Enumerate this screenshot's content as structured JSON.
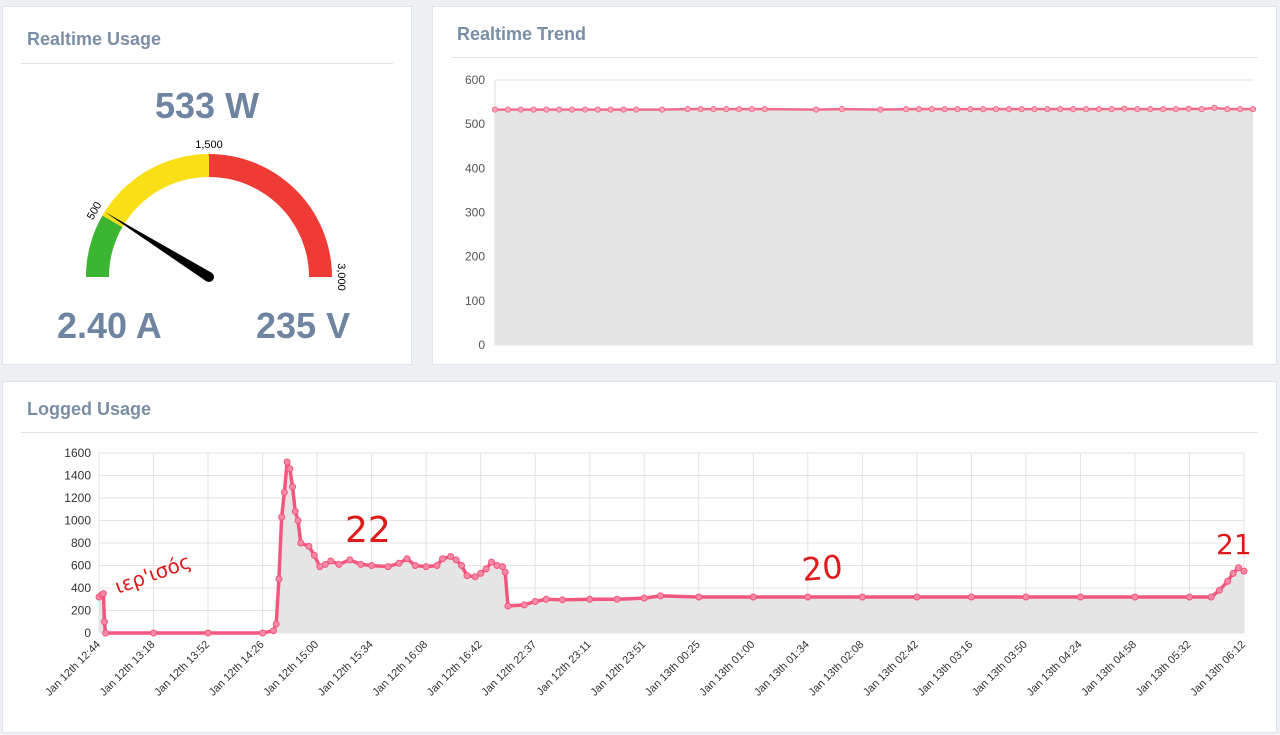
{
  "usage": {
    "title": "Realtime Usage",
    "power": "533 W",
    "current": "2.40 A",
    "voltage": "235 V",
    "gauge": {
      "min": 0,
      "max": 3000,
      "value": 533,
      "bands": [
        {
          "from": 0,
          "to": 500,
          "color": "#3cb532"
        },
        {
          "from": 500,
          "to": 1500,
          "color": "#f9e016"
        },
        {
          "from": 1500,
          "to": 3000,
          "color": "#ef3b36"
        }
      ],
      "tick_labels": [
        "500",
        "1,500",
        "3,000"
      ],
      "needle_color": "#000000"
    }
  },
  "trend": {
    "title": "Realtime Trend",
    "chart_data": {
      "type": "area",
      "yticks": [
        "600",
        "500",
        "400",
        "300",
        "200",
        "100",
        "0"
      ],
      "ylim": [
        0,
        600
      ],
      "series": [
        {
          "values": [
            533,
            533,
            533,
            533,
            533,
            533,
            533,
            533,
            533,
            533,
            533,
            533,
            533,
            534,
            534,
            534,
            534,
            534,
            534,
            534,
            533,
            534,
            533,
            534,
            534,
            534,
            534,
            534,
            534,
            534,
            534,
            534,
            534,
            534,
            534,
            534,
            534,
            534,
            534,
            534,
            535,
            534,
            534,
            534,
            534,
            535,
            534,
            537,
            534,
            534,
            534
          ]
        }
      ],
      "x_positions": [
        0,
        1,
        2,
        3,
        4,
        5,
        6,
        7,
        8,
        9,
        10,
        11,
        13,
        15,
        16,
        17,
        18,
        19,
        20,
        21,
        25,
        27,
        30,
        32,
        33,
        34,
        35,
        36,
        37,
        38,
        39,
        40,
        41,
        42,
        43,
        44,
        45,
        46,
        47,
        48,
        49,
        50,
        51,
        52,
        53,
        54,
        55,
        56,
        57,
        58,
        59
      ],
      "x_count": 59,
      "line_color": "#f06c8d",
      "fill_color": "#e5e5e5",
      "grid": true
    }
  },
  "logged": {
    "title": "Logged Usage",
    "chart_data": {
      "type": "area",
      "yticks": [
        "1600",
        "1400",
        "1200",
        "1000",
        "800",
        "600",
        "400",
        "200",
        "0"
      ],
      "ylim": [
        0,
        1600
      ],
      "xticks": [
        "Jan 12th 12:44",
        "Jan 12th 13:18",
        "Jan 12th 13:52",
        "Jan 12th 14:26",
        "Jan 12th 15:00",
        "Jan 12th 15:34",
        "Jan 12th 16:08",
        "Jan 12th 16:42",
        "Jan 12th 22:37",
        "Jan 12th 23:11",
        "Jan 12th 23:51",
        "Jan 13th 00:25",
        "Jan 13th 01:00",
        "Jan 13th 01:34",
        "Jan 13th 02:08",
        "Jan 13th 02:42",
        "Jan 13th 03:16",
        "Jan 13th 03:50",
        "Jan 13th 04:24",
        "Jan 13th 04:58",
        "Jan 13th 05:32",
        "Jan 13th 06:12"
      ],
      "series": [
        {
          "points": [
            [
              0,
              320
            ],
            [
              0.05,
              340
            ],
            [
              0.08,
              350
            ],
            [
              0.1,
              100
            ],
            [
              0.12,
              0
            ],
            [
              1,
              0
            ],
            [
              2,
              0
            ],
            [
              3,
              0
            ],
            [
              3.2,
              20
            ],
            [
              3.25,
              80
            ],
            [
              3.3,
              480
            ],
            [
              3.35,
              1030
            ],
            [
              3.4,
              1250
            ],
            [
              3.45,
              1520
            ],
            [
              3.5,
              1460
            ],
            [
              3.55,
              1300
            ],
            [
              3.6,
              1080
            ],
            [
              3.65,
              1000
            ],
            [
              3.7,
              800
            ],
            [
              3.85,
              770
            ],
            [
              3.95,
              690
            ],
            [
              4.05,
              590
            ],
            [
              4.15,
              610
            ],
            [
              4.25,
              640
            ],
            [
              4.4,
              610
            ],
            [
              4.6,
              650
            ],
            [
              4.8,
              610
            ],
            [
              5.0,
              600
            ],
            [
              5.3,
              590
            ],
            [
              5.5,
              620
            ],
            [
              5.65,
              660
            ],
            [
              5.8,
              600
            ],
            [
              6.0,
              590
            ],
            [
              6.2,
              600
            ],
            [
              6.3,
              660
            ],
            [
              6.45,
              680
            ],
            [
              6.55,
              650
            ],
            [
              6.65,
              600
            ],
            [
              6.75,
              510
            ],
            [
              6.9,
              500
            ],
            [
              7.0,
              530
            ],
            [
              7.1,
              570
            ],
            [
              7.2,
              630
            ],
            [
              7.3,
              600
            ],
            [
              7.4,
              590
            ],
            [
              7.45,
              540
            ],
            [
              7.5,
              240
            ],
            [
              7.8,
              250
            ],
            [
              8.0,
              280
            ],
            [
              8.2,
              300
            ],
            [
              8.5,
              295
            ],
            [
              9.0,
              300
            ],
            [
              9.5,
              300
            ],
            [
              10.0,
              310
            ],
            [
              10.3,
              330
            ],
            [
              11,
              320
            ],
            [
              12,
              320
            ],
            [
              13,
              320
            ],
            [
              14,
              320
            ],
            [
              15,
              320
            ],
            [
              16,
              320
            ],
            [
              17,
              320
            ],
            [
              18,
              320
            ],
            [
              19,
              320
            ],
            [
              20,
              320
            ],
            [
              20.4,
              320
            ],
            [
              20.55,
              380
            ],
            [
              20.7,
              460
            ],
            [
              20.8,
              530
            ],
            [
              20.9,
              580
            ],
            [
              21.0,
              550
            ]
          ],
          "line_color": "#f2577f",
          "fill_color": "#e5e5e5"
        }
      ],
      "grid": true
    },
    "annotations": [
      "ιερ'ισός",
      "22",
      "20",
      "21"
    ]
  }
}
